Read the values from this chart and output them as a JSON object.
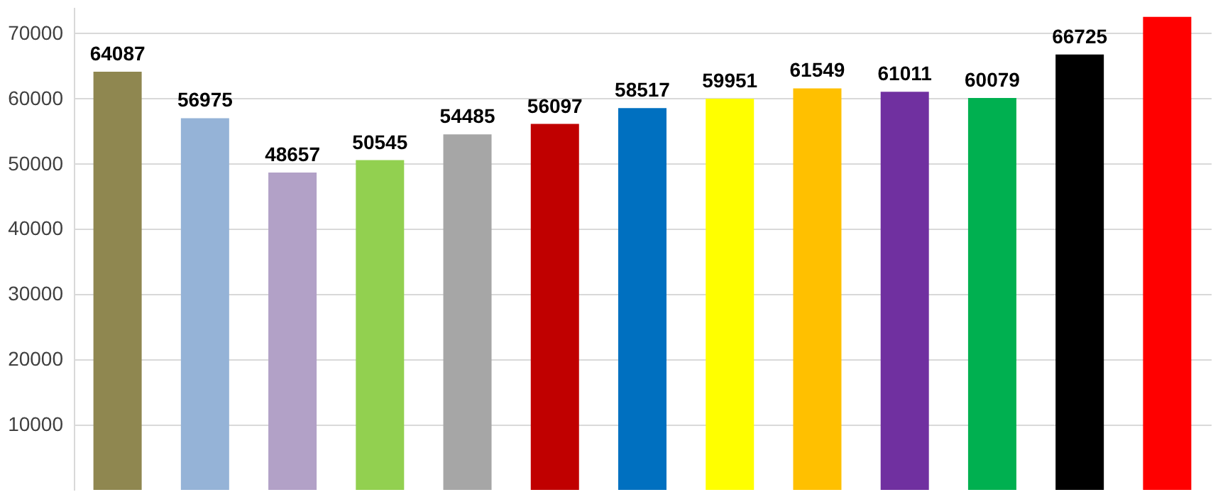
{
  "chart_data": {
    "type": "bar",
    "categories": [
      null,
      null,
      null,
      null,
      null,
      null,
      null,
      null,
      null,
      null,
      null,
      null,
      null
    ],
    "values": [
      64087,
      56975,
      48657,
      50545,
      54485,
      56097,
      58517,
      59951,
      61549,
      61011,
      60079,
      66725,
      72500
    ],
    "colors": [
      "#8f8750",
      "#95b3d7",
      "#b2a1c7",
      "#92d050",
      "#a6a6a6",
      "#c00000",
      "#0070c0",
      "#ffff00",
      "#ffc000",
      "#7030a0",
      "#00b050",
      "#000000",
      "#ff0000"
    ],
    "value_labels": [
      "64087",
      "56975",
      "48657",
      "50545",
      "54485",
      "56097",
      "58517",
      "59951",
      "61549",
      "61011",
      "60079",
      "66725",
      null
    ],
    "ylim": [
      0,
      74000
    ],
    "yticks": [
      10000,
      20000,
      30000,
      40000,
      50000,
      60000,
      70000
    ],
    "grid": "y",
    "tick_labels": "y"
  }
}
